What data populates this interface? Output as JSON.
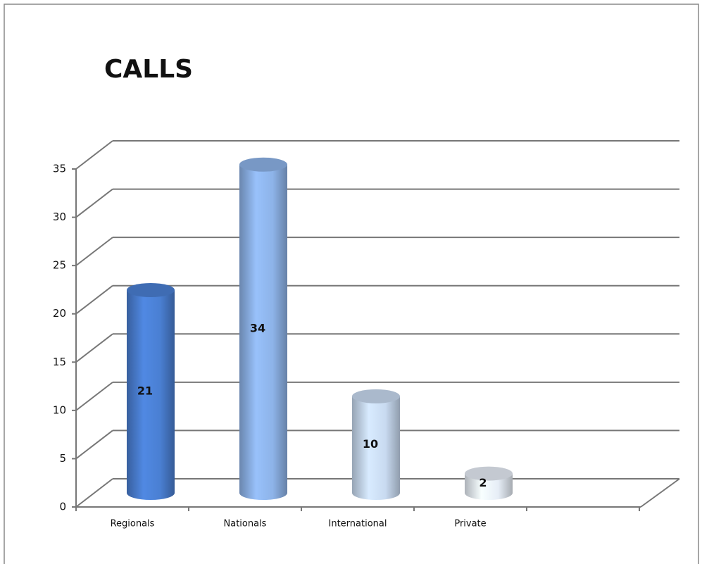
{
  "chart_data": {
    "type": "bar3d",
    "title": "CALLS",
    "categories": [
      "Regionals",
      "Nationals",
      "International",
      "Private"
    ],
    "values": [
      21,
      34,
      10,
      2
    ],
    "colors": [
      "#4a7fd2",
      "#8db3e8",
      "#c8daf0",
      "#e6edf6"
    ],
    "ylim": [
      0,
      35
    ],
    "yticks": [
      0,
      5,
      10,
      15,
      20,
      25,
      30,
      35
    ],
    "grid": true
  }
}
